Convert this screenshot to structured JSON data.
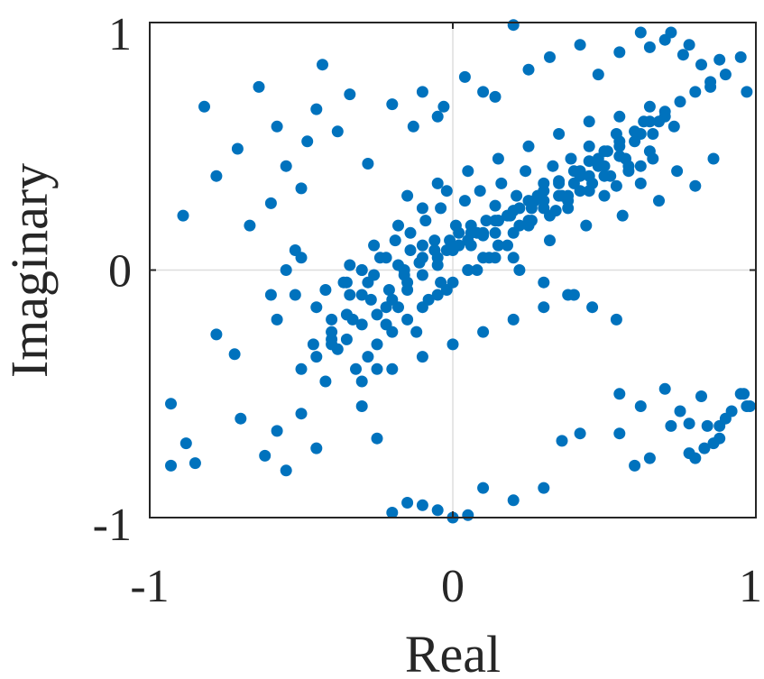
{
  "chart_data": {
    "type": "scatter",
    "xlabel": "Real",
    "ylabel": "Imaginary",
    "xlim": [
      -1,
      1
    ],
    "ylim": [
      -1,
      1
    ],
    "x_ticks": [
      -1,
      0,
      1
    ],
    "y_ticks": [
      -1,
      0,
      1
    ],
    "x_tick_labels": [
      "-1",
      "0",
      "1"
    ],
    "y_tick_labels": [
      "-1",
      "0",
      "1"
    ],
    "grid": true,
    "marker_color": "#0072BD",
    "series": [
      {
        "x": [
          -0.93,
          -0.89,
          -0.82,
          -0.78,
          -0.71,
          -0.67,
          -0.64,
          -0.6,
          -0.58,
          -0.55,
          -0.52,
          -0.5,
          -0.48,
          -0.45,
          -0.43,
          -0.38,
          -0.34,
          -0.28,
          -0.2,
          -0.13,
          -0.1,
          -0.05,
          -0.03,
          0.04,
          0.1,
          0.14,
          0.2,
          0.25,
          0.32,
          0.42,
          0.48,
          0.55,
          0.62,
          0.65,
          0.7,
          0.72,
          0.76,
          0.78,
          0.82,
          0.85,
          0.88,
          0.9,
          0.95,
          0.97,
          -0.93,
          -0.88,
          -0.85,
          -0.78,
          -0.72,
          -0.7,
          -0.62,
          -0.58,
          -0.55,
          -0.5,
          -0.45,
          -0.3,
          -0.25,
          -0.2,
          -0.15,
          -0.1,
          -0.05,
          0.0,
          0.05,
          0.1,
          0.2,
          0.3,
          0.36,
          0.42,
          0.55,
          0.6,
          0.65,
          0.72,
          0.78,
          0.83,
          0.88,
          0.96,
          0.98,
          0.82,
          0.84,
          0.86,
          0.8,
          0.88,
          0.9,
          0.92,
          0.95,
          0.97,
          0.78,
          0.75,
          0.7,
          0.62,
          0.55,
          -0.42,
          -0.38,
          -0.32,
          -0.4,
          -0.35,
          -0.28,
          -0.22,
          -0.25,
          -0.3,
          -0.18,
          -0.15,
          -0.12,
          -0.08,
          -0.05,
          -0.02,
          0.02,
          0.05,
          0.08,
          0.12,
          0.15,
          0.18,
          0.22,
          0.25,
          0.28,
          0.32,
          0.35,
          0.38,
          0.42,
          0.45,
          0.48,
          0.52,
          0.55,
          0.58,
          0.62,
          0.65,
          0.68,
          -0.45,
          -0.4,
          -0.36,
          -0.33,
          -0.3,
          -0.27,
          -0.24,
          -0.21,
          -0.19,
          -0.16,
          -0.14,
          -0.11,
          -0.09,
          -0.06,
          -0.04,
          -0.01,
          0.01,
          0.04,
          0.06,
          0.09,
          0.11,
          0.14,
          0.16,
          0.19,
          0.21,
          0.24,
          0.27,
          0.3,
          0.33,
          0.36,
          0.39,
          0.42,
          0.45,
          0.48,
          0.51,
          0.54,
          0.57,
          0.6,
          0.63,
          0.66,
          0.7,
          0.73,
          -0.35,
          -0.3,
          -0.26,
          -0.22,
          -0.18,
          -0.14,
          -0.1,
          -0.06,
          -0.02,
          0.02,
          0.06,
          0.1,
          0.14,
          0.18,
          0.22,
          0.26,
          0.3,
          0.34,
          0.38,
          0.42,
          0.46,
          0.5,
          0.54,
          0.58,
          0.62,
          0.66,
          -0.25,
          -0.2,
          -0.15,
          -0.1,
          -0.05,
          0.0,
          0.05,
          0.1,
          0.15,
          0.2,
          0.25,
          0.3,
          0.35,
          0.4,
          0.45,
          0.5,
          0.55,
          -0.5,
          -0.45,
          -0.4,
          -0.35,
          -0.3,
          -0.25,
          -0.2,
          -0.15,
          -0.1,
          -0.05,
          0.0,
          0.05,
          0.1,
          0.15,
          0.2,
          0.25,
          0.3,
          0.35,
          0.4,
          0.45,
          0.5,
          0.55,
          0.6,
          0.65,
          0.7,
          0.75,
          0.8,
          0.85,
          -0.58,
          -0.52,
          -0.46,
          -0.4,
          -0.34,
          -0.28,
          -0.22,
          -0.16,
          -0.1,
          -0.04,
          0.02,
          0.08,
          0.14,
          0.2,
          0.26,
          0.32,
          0.38,
          0.44,
          0.5,
          0.56,
          0.62,
          0.68,
          0.74,
          0.8,
          0.86,
          -0.3,
          -0.2,
          -0.1,
          0.0,
          0.1,
          0.2,
          0.3,
          0.4,
          -0.15,
          -0.05,
          0.05,
          0.15,
          0.25,
          0.35,
          0.45,
          0.55,
          0.65,
          -0.6,
          -0.55,
          -0.5,
          -0.42,
          -0.34,
          -0.26,
          -0.18,
          -0.1,
          -0.02,
          0.06,
          0.14,
          0.22,
          0.3,
          0.38,
          0.46,
          0.54
        ],
        "y": [
          -0.79,
          0.22,
          0.66,
          0.38,
          0.49,
          0.18,
          0.74,
          0.27,
          0.58,
          0.42,
          0.08,
          0.33,
          0.52,
          0.65,
          0.83,
          0.56,
          0.71,
          0.43,
          0.67,
          0.58,
          0.72,
          0.62,
          0.66,
          0.78,
          0.72,
          0.7,
          0.99,
          0.81,
          0.86,
          0.91,
          0.79,
          0.88,
          0.96,
          0.9,
          0.93,
          0.96,
          0.87,
          0.91,
          0.83,
          0.74,
          0.85,
          0.79,
          0.86,
          0.72,
          -0.54,
          -0.7,
          -0.78,
          -0.26,
          -0.34,
          -0.6,
          -0.75,
          -0.65,
          -0.81,
          -0.58,
          -0.72,
          -0.55,
          -0.68,
          -0.98,
          -0.94,
          -0.95,
          -0.97,
          -1.0,
          -0.99,
          -0.88,
          -0.93,
          -0.88,
          -0.69,
          -0.66,
          -0.66,
          -0.79,
          -0.76,
          -0.63,
          -0.74,
          -0.72,
          -0.63,
          -0.5,
          -0.55,
          -0.51,
          -0.63,
          -0.7,
          -0.76,
          -0.68,
          -0.6,
          -0.57,
          -0.5,
          -0.55,
          -0.62,
          -0.57,
          -0.48,
          -0.55,
          -0.5,
          -0.45,
          -0.32,
          -0.4,
          -0.28,
          -0.18,
          -0.35,
          -0.22,
          -0.4,
          -0.1,
          -0.15,
          -0.05,
          -0.25,
          -0.12,
          0.05,
          -0.08,
          0.1,
          0.0,
          0.15,
          0.05,
          0.2,
          0.1,
          0.25,
          0.18,
          0.3,
          0.22,
          0.35,
          0.28,
          0.4,
          0.32,
          0.45,
          0.38,
          0.5,
          0.42,
          0.55,
          0.48,
          0.6,
          -0.15,
          -0.25,
          -0.05,
          -0.2,
          0.0,
          -0.12,
          0.05,
          -0.08,
          0.12,
          -0.02,
          0.15,
          0.03,
          0.2,
          0.08,
          0.25,
          0.12,
          0.18,
          0.28,
          0.15,
          0.32,
          0.2,
          0.26,
          0.35,
          0.22,
          0.3,
          0.4,
          0.28,
          0.35,
          0.42,
          0.3,
          0.45,
          0.38,
          0.5,
          0.42,
          0.48,
          0.55,
          0.45,
          0.52,
          0.6,
          0.55,
          0.62,
          0.58,
          -0.05,
          0.0,
          -0.02,
          0.05,
          0.02,
          0.08,
          0.1,
          0.12,
          0.08,
          0.15,
          0.18,
          0.14,
          0.2,
          0.22,
          0.18,
          0.25,
          0.28,
          0.24,
          0.3,
          0.32,
          0.35,
          0.38,
          0.34,
          0.4,
          0.42,
          0.45,
          -0.3,
          -0.25,
          -0.2,
          -0.15,
          -0.1,
          -0.05,
          0.0,
          0.05,
          0.1,
          0.15,
          0.2,
          0.25,
          0.3,
          0.35,
          0.38,
          0.42,
          0.46,
          -0.4,
          -0.35,
          -0.3,
          -0.28,
          -0.22,
          -0.18,
          -0.12,
          -0.08,
          -0.02,
          0.02,
          0.08,
          0.12,
          0.15,
          0.2,
          0.24,
          0.28,
          0.32,
          0.36,
          0.4,
          0.44,
          0.48,
          0.52,
          0.56,
          0.6,
          0.64,
          0.68,
          0.72,
          0.76,
          -0.2,
          -0.1,
          -0.3,
          -0.2,
          -0.1,
          -0.05,
          -0.15,
          0.0,
          0.05,
          -0.05,
          0.1,
          0.0,
          0.15,
          0.05,
          0.2,
          0.12,
          0.25,
          0.18,
          0.3,
          0.22,
          0.35,
          0.28,
          0.4,
          0.34,
          0.45,
          -0.45,
          -0.4,
          -0.35,
          -0.3,
          -0.25,
          -0.2,
          -0.15,
          -0.1,
          0.3,
          0.35,
          0.4,
          0.45,
          0.5,
          0.55,
          0.6,
          0.62,
          0.66,
          -0.1,
          0.0,
          0.05,
          -0.08,
          0.02,
          0.1,
          0.18,
          0.25,
          0.32,
          0.1,
          0.05,
          0.0,
          -0.05,
          -0.1,
          -0.15,
          -0.2
        ]
      }
    ]
  }
}
